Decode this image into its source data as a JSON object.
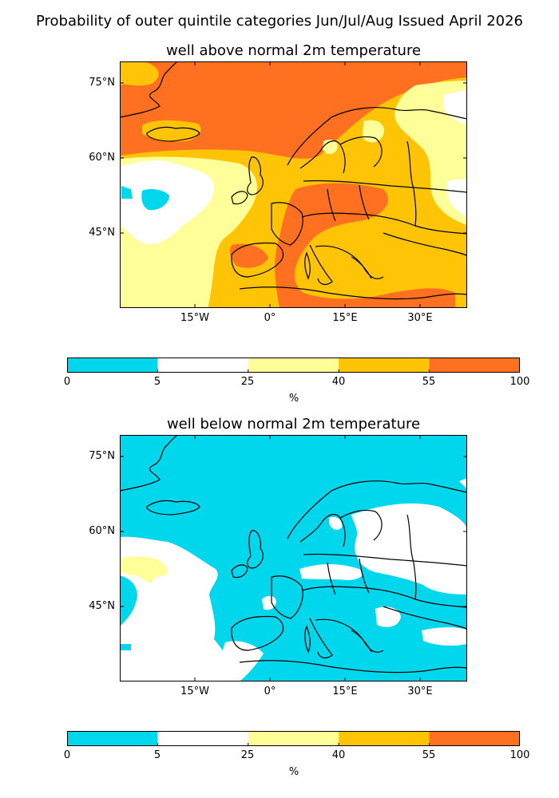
{
  "suptitle": "Probability of outer quintile categories Jun/Jul/Aug Issued April 2026",
  "panels": [
    {
      "title": "well above normal 2m temperature",
      "background_category": 4
    },
    {
      "title": "well below normal 2m temperature",
      "background_category": 0
    }
  ],
  "axes": {
    "lat_ticks": [
      "75°N",
      "60°N",
      "45°N"
    ],
    "lon_ticks": [
      "15°W",
      "0°",
      "15°E",
      "30°E"
    ]
  },
  "colorbar": {
    "boundaries": [
      "0",
      "5",
      "25",
      "40",
      "55",
      "100"
    ],
    "colors": [
      "#00d6ec",
      "#ffffff",
      "#ffff99",
      "#ffc405",
      "#ff7120"
    ],
    "unit": "%"
  }
}
